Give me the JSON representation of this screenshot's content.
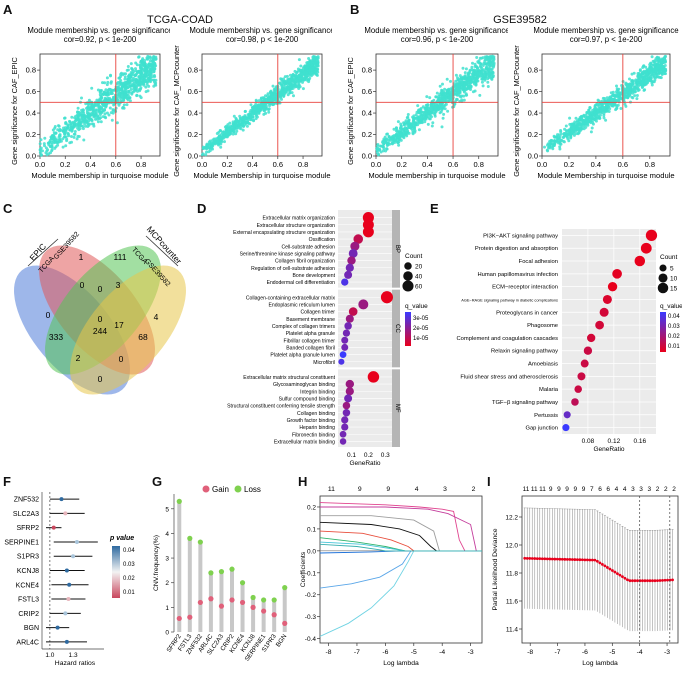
{
  "panel_labels": {
    "a": "A",
    "b": "B",
    "c": "C",
    "d": "D",
    "e": "E",
    "f": "F",
    "g": "G",
    "h": "H",
    "i": "I"
  },
  "headers": {
    "a": "TCGA-COAD",
    "b": "GSE39582"
  },
  "colors": {
    "turquoise": "#3fe0cf",
    "red": "#e8413c",
    "green": "#7fd14f",
    "pink": "#e0607a",
    "gray": "#c8c8c8",
    "enrich_high": "#e8001c",
    "enrich_low": "#3a3aff"
  },
  "chart_data": [
    {
      "id": "A1",
      "type": "scatter",
      "title": "Module membership vs. gene significance",
      "subtitle": "cor=0.92, p < 1e-200",
      "xlabel": "Module membership in turquoise module",
      "ylabel": "Gene significance for CAF_EPIC",
      "xticks": [
        "0.0",
        "0.2",
        "0.4",
        "0.6",
        "0.8"
      ],
      "yticks": [
        "0.0",
        "0.2",
        "0.4",
        "0.6",
        "0.8"
      ],
      "xlim": [
        0,
        0.95
      ],
      "ylim": [
        0,
        0.95
      ],
      "cut_x": 0.6,
      "cut_y": 0.5,
      "slope": 0.85,
      "intercept": 0.06,
      "noise": 0.08
    },
    {
      "id": "A2",
      "type": "scatter",
      "title": "Module membership vs. gene significance",
      "subtitle": "cor=0.98, p < 1e-200",
      "xlabel": "Module Membership in turquoise module",
      "ylabel": "Gene significance for CAF_MCPcounter",
      "xticks": [
        "0.0",
        "0.2",
        "0.4",
        "0.6",
        "0.8"
      ],
      "yticks": [
        "0.0",
        "0.2",
        "0.4",
        "0.6",
        "0.8"
      ],
      "xlim": [
        0,
        0.95
      ],
      "ylim": [
        0,
        0.95
      ],
      "cut_x": 0.6,
      "cut_y": 0.5,
      "slope": 0.9,
      "intercept": 0.04,
      "noise": 0.045
    },
    {
      "id": "B1",
      "type": "scatter",
      "title": "Module membership vs. gene significance",
      "subtitle": "cor=0.96, p < 1e-200",
      "xlabel": "Module membership in turquoise module",
      "ylabel": "Gene significance for CAF_EPIC",
      "xticks": [
        "0.0",
        "0.2",
        "0.4",
        "0.6",
        "0.8"
      ],
      "yticks": [
        "0.0",
        "0.2",
        "0.4",
        "0.6",
        "0.8"
      ],
      "xlim": [
        0,
        0.95
      ],
      "ylim": [
        0,
        0.95
      ],
      "cut_x": 0.6,
      "cut_y": 0.5,
      "slope": 0.9,
      "intercept": 0.05,
      "noise": 0.06
    },
    {
      "id": "B2",
      "type": "scatter",
      "title": "Module membership vs. gene significance",
      "subtitle": "cor=0.97, p < 1e-200",
      "xlabel": "Module Membership in turquoise module",
      "ylabel": "Gene significance for CAF_MCPcounter",
      "xticks": [
        "0.0",
        "0.2",
        "0.4",
        "0.6",
        "0.8"
      ],
      "yticks": [
        "0.0",
        "0.2",
        "0.4",
        "0.6",
        "0.8"
      ],
      "xlim": [
        0,
        0.95
      ],
      "ylim": [
        0,
        0.95
      ],
      "cut_x": 0.6,
      "cut_y": 0.5,
      "slope": 0.9,
      "intercept": 0.04,
      "noise": 0.05
    },
    {
      "id": "C",
      "type": "venn",
      "sets": [
        {
          "group": "EPIC",
          "name": "TCGA",
          "color": "#4f7bd9"
        },
        {
          "group": "EPIC",
          "name": "GSE39582",
          "color": "#e05a5a"
        },
        {
          "group": "MCPcounter",
          "name": "TCGA",
          "color": "#55c455"
        },
        {
          "group": "MCPcounter",
          "name": "GSE39582",
          "color": "#e8c64a"
        }
      ],
      "counts": [
        "1",
        "111",
        "0",
        "0",
        "3",
        "0",
        "333",
        "17",
        "244",
        "68",
        "4",
        "2",
        "0",
        "0",
        "0"
      ]
    },
    {
      "id": "D",
      "type": "dotplot",
      "xlabel": "GeneRatio",
      "xticks": [
        "0.1",
        "0.2",
        "0.3"
      ],
      "xlim": [
        0.02,
        0.34
      ],
      "groups": [
        {
          "name": "BP",
          "terms": [
            "Extracellular matrix organization",
            "Extracellular structure organization",
            "External encapsulating structure organization",
            "Ossification",
            "Cell-substrate adhesion",
            "Serine/threonine kinase signaling pathway",
            "Collagen fibril organization",
            "Regulation of cell-substrate adhesion",
            "Bone development",
            "Endodermal cell differentiation"
          ],
          "generatio": [
            0.2,
            0.2,
            0.2,
            0.14,
            0.12,
            0.11,
            0.1,
            0.09,
            0.08,
            0.06
          ],
          "count": [
            60,
            58,
            58,
            40,
            35,
            32,
            28,
            26,
            24,
            18
          ],
          "q": [
            1e-09,
            1e-09,
            1e-09,
            1e-08,
            1e-07,
            1e-06,
            1e-07,
            1e-06,
            1e-06,
            1e-05
          ]
        },
        {
          "name": "CC",
          "terms": [
            "Collagen-containing extracellular matrix",
            "Endoplasmic reticulum lumen",
            "Collagen trimer",
            "Basement membrane",
            "Complex of collagen trimers",
            "Platelet alpha granule",
            "Fibrillar collagen trimer",
            "Banded collagen fibril",
            "Platelet alpha granule lumen",
            "Microfibril"
          ],
          "generatio": [
            0.31,
            0.17,
            0.11,
            0.09,
            0.08,
            0.07,
            0.06,
            0.06,
            0.05,
            0.04
          ],
          "count": [
            75,
            45,
            30,
            25,
            20,
            18,
            16,
            16,
            14,
            10
          ],
          "q": [
            1e-09,
            1e-07,
            1e-08,
            1e-07,
            1e-06,
            1e-06,
            1e-06,
            1e-06,
            3e-05,
            1e-05
          ]
        },
        {
          "name": "MF",
          "terms": [
            "Extracellular matrix structural constituent",
            "Glycosaminoglycan binding",
            "Integrin binding",
            "Sulfur compound binding",
            "Structural constituent conferring tensile strength",
            "Collagen binding",
            "Growth factor binding",
            "Heparin binding",
            "Fibronectin binding",
            "Extracellular matrix binding"
          ],
          "generatio": [
            0.23,
            0.09,
            0.09,
            0.08,
            0.07,
            0.07,
            0.06,
            0.06,
            0.05,
            0.05
          ],
          "count": [
            65,
            28,
            26,
            24,
            20,
            20,
            18,
            17,
            14,
            13
          ],
          "q": [
            1e-09,
            1e-07,
            1e-07,
            1e-06,
            1e-07,
            1e-06,
            1e-06,
            1e-06,
            1e-06,
            1e-06
          ]
        }
      ],
      "legend_count_title": "Count",
      "legend_count_values": [
        "20",
        "40",
        "60"
      ],
      "legend_q_title": "q_value",
      "legend_q_ticks": [
        "3e-05",
        "2e-05",
        "1e-05"
      ]
    },
    {
      "id": "E",
      "type": "dotplot",
      "xlabel": "GeneRatio",
      "xticks": [
        "0.08",
        "0.12",
        "0.16"
      ],
      "xlim": [
        0.04,
        0.185
      ],
      "terms": [
        "PI3K−AKT signaling pathway",
        "Protein digestion and absorption",
        "Focal adhesion",
        "Human papillomavirus infection",
        "ECM−receptor interaction",
        "AGE−RAGE signaling pathway in diabetic complications",
        "Proteoglycans in cancer",
        "Phagosome",
        "Complement and coagulation cascades",
        "Relaxin signaling pathway",
        "Amoebiasis",
        "Fluid shear stress and atherosclerosis",
        "Malaria",
        "TGF−β signaling pathway",
        "Pertussis",
        "Gap junction"
      ],
      "generatio": [
        0.178,
        0.17,
        0.16,
        0.125,
        0.118,
        0.11,
        0.105,
        0.098,
        0.085,
        0.08,
        0.075,
        0.07,
        0.065,
        0.06,
        0.048,
        0.046
      ],
      "count": [
        18,
        16,
        15,
        12,
        11,
        10,
        10,
        9,
        8,
        8,
        7,
        7,
        6,
        6,
        5,
        5
      ],
      "q": [
        0.005,
        0.005,
        0.005,
        0.006,
        0.005,
        0.008,
        0.01,
        0.01,
        0.01,
        0.012,
        0.012,
        0.012,
        0.012,
        0.015,
        0.035,
        0.045
      ],
      "legend_count_title": "Count",
      "legend_count_values": [
        "5",
        "10",
        "15"
      ],
      "legend_q_title": "q_value",
      "legend_q_ticks": [
        "0.04",
        "0.03",
        "0.02",
        "0.01"
      ]
    },
    {
      "id": "F",
      "type": "forest",
      "genes": [
        "ZNF532",
        "SLC2A3",
        "SFRP2",
        "SERPINE1",
        "S1PR3",
        "KCNJ8",
        "KCNE4",
        "FSTL3",
        "CRIP2",
        "BGN",
        "ARL4C"
      ],
      "hr": [
        1.15,
        1.2,
        1.05,
        1.35,
        1.3,
        1.22,
        1.25,
        1.24,
        1.2,
        1.1,
        1.22
      ],
      "lo": [
        1.0,
        1.0,
        0.95,
        1.05,
        1.05,
        1.0,
        1.02,
        1.02,
        1.0,
        0.95,
        0.95
      ],
      "hi": [
        1.38,
        1.45,
        1.15,
        1.62,
        1.55,
        1.45,
        1.5,
        1.46,
        1.4,
        1.25,
        1.48
      ],
      "p": [
        0.04,
        0.02,
        0.015,
        0.03,
        0.025,
        0.035,
        0.04,
        0.02,
        0.03,
        0.045,
        0.04
      ],
      "xlabel": "Hazard ratios",
      "xticks": [
        "1.0",
        "1.3"
      ],
      "legend_title": "p value",
      "legend_ticks": [
        "0.04",
        "0.03",
        "0.02",
        "0.01"
      ]
    },
    {
      "id": "G",
      "type": "lollipop",
      "legend": [
        "Gain",
        "Loss"
      ],
      "ylabel": "CNV.frequency(%)",
      "yticks": [
        "0",
        "1",
        "2",
        "3",
        "4",
        "5"
      ],
      "ylim": [
        0,
        5.6
      ],
      "genes": [
        "SFRP2",
        "FSTL3",
        "ZNF532",
        "ARL4C",
        "SLC2A3",
        "CRIP2",
        "KCNE4",
        "KCNJ8",
        "SERPINE1",
        "S1PR3",
        "BGN"
      ],
      "gain": [
        0.55,
        0.6,
        1.2,
        1.35,
        1.05,
        1.3,
        1.2,
        1.0,
        0.85,
        0.7,
        0.35
      ],
      "loss": [
        5.3,
        3.8,
        3.65,
        2.4,
        2.45,
        2.55,
        2.0,
        1.4,
        1.3,
        1.3,
        1.8
      ]
    },
    {
      "id": "H",
      "type": "line",
      "xlabel": "Log lambda",
      "ylabel": "Coefficients",
      "xticks": [
        "-8",
        "-7",
        "-6",
        "-5",
        "-4",
        "-3"
      ],
      "yticks": [
        "-0.4",
        "-0.3",
        "-0.2",
        "-0.1",
        "0.0",
        "0.1",
        "0.2"
      ],
      "top_ticks": [
        "11",
        "9",
        "9",
        "4",
        "3",
        "2"
      ],
      "xlim": [
        -8.3,
        -2.6
      ],
      "ylim": [
        -0.42,
        0.25
      ]
    },
    {
      "id": "I",
      "type": "errorbar",
      "xlabel": "Log lambda",
      "ylabel": "Partial Likelihood Deviance",
      "xticks": [
        "-8",
        "-7",
        "-6",
        "-5",
        "-4",
        "-3"
      ],
      "yticks": [
        "11.4",
        "11.6",
        "11.8",
        "12.0",
        "12.2"
      ],
      "top_ticks": [
        "11",
        "11",
        "11",
        "9",
        "9",
        "9",
        "9",
        "9",
        "7",
        "6",
        "6",
        "4",
        "4",
        "3",
        "3",
        "3",
        "2",
        "2",
        "2"
      ],
      "xlim": [
        -8.3,
        -2.6
      ],
      "ylim": [
        11.3,
        12.35
      ],
      "vlines": [
        -4.0,
        -2.9
      ]
    }
  ]
}
